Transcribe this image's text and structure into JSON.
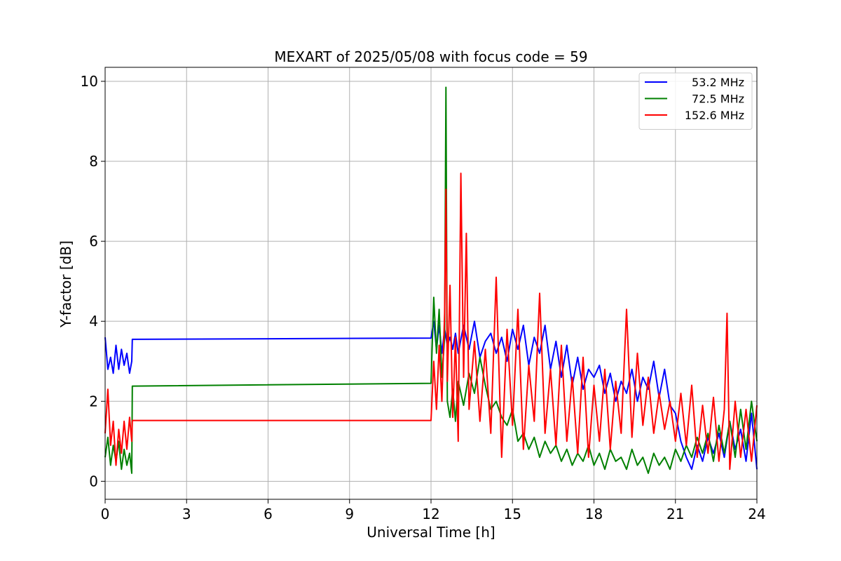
{
  "chart_data": {
    "type": "line",
    "title": "MEXART of 2025/05/08 with focus code = 59",
    "xlabel": "Universal Time [h]",
    "ylabel": "Y-factor [dB]",
    "xlim": [
      0,
      24
    ],
    "ylim": [
      -0.45,
      10.35
    ],
    "xticks": [
      0,
      3,
      6,
      9,
      12,
      15,
      18,
      21,
      24
    ],
    "yticks": [
      0,
      2,
      4,
      6,
      8,
      10
    ],
    "xtick_labels": [
      "0",
      "3",
      "6",
      "9",
      "12",
      "15",
      "18",
      "21",
      "24"
    ],
    "ytick_labels": [
      "0",
      "2",
      "4",
      "6",
      "8",
      "10"
    ],
    "grid": true,
    "legend_position": "top-right",
    "series": [
      {
        "name": "53.2 MHz",
        "color": "#0000ff",
        "x": [
          0,
          0.1,
          0.2,
          0.3,
          0.4,
          0.5,
          0.6,
          0.7,
          0.8,
          0.9,
          0.98,
          1.0,
          12.0,
          12.1,
          12.2,
          12.3,
          12.4,
          12.5,
          12.6,
          12.7,
          12.8,
          12.9,
          13.0,
          13.2,
          13.4,
          13.6,
          13.8,
          14.0,
          14.2,
          14.4,
          14.6,
          14.8,
          15.0,
          15.2,
          15.4,
          15.6,
          15.8,
          16.0,
          16.2,
          16.4,
          16.6,
          16.8,
          17.0,
          17.2,
          17.4,
          17.6,
          17.8,
          18.0,
          18.2,
          18.4,
          18.6,
          18.8,
          19.0,
          19.2,
          19.4,
          19.6,
          19.8,
          20.0,
          20.2,
          20.4,
          20.6,
          20.8,
          21.0,
          21.2,
          21.4,
          21.6,
          21.8,
          22.0,
          22.2,
          22.4,
          22.6,
          22.8,
          23.0,
          23.2,
          23.4,
          23.6,
          23.8,
          24.0
        ],
        "values": [
          3.6,
          2.8,
          3.1,
          2.7,
          3.4,
          2.8,
          3.3,
          2.9,
          3.2,
          2.7,
          3.0,
          3.55,
          3.58,
          4.0,
          3.3,
          3.9,
          3.2,
          3.8,
          3.4,
          3.6,
          3.3,
          3.7,
          3.2,
          3.9,
          3.3,
          4.0,
          3.1,
          3.5,
          3.7,
          3.2,
          3.6,
          3.0,
          3.8,
          3.3,
          3.9,
          2.9,
          3.6,
          3.2,
          3.9,
          2.8,
          3.5,
          2.6,
          3.4,
          2.4,
          3.1,
          2.3,
          2.8,
          2.6,
          2.9,
          2.2,
          2.7,
          2.0,
          2.5,
          2.2,
          2.8,
          2.0,
          2.6,
          2.3,
          3.0,
          2.1,
          2.8,
          1.9,
          1.7,
          1.0,
          0.6,
          0.3,
          0.9,
          0.5,
          1.1,
          0.7,
          1.2,
          0.6,
          1.5,
          0.8,
          1.3,
          0.5,
          1.7,
          0.3
        ]
      },
      {
        "name": "72.5 MHz",
        "color": "#008000",
        "x": [
          0,
          0.1,
          0.2,
          0.3,
          0.4,
          0.5,
          0.6,
          0.7,
          0.8,
          0.9,
          0.98,
          1.0,
          12.0,
          12.1,
          12.2,
          12.3,
          12.4,
          12.5,
          12.55,
          12.6,
          12.7,
          12.8,
          12.9,
          13.0,
          13.2,
          13.4,
          13.6,
          13.8,
          14.0,
          14.2,
          14.4,
          14.6,
          14.8,
          15.0,
          15.2,
          15.4,
          15.6,
          15.8,
          16.0,
          16.2,
          16.4,
          16.6,
          16.8,
          17.0,
          17.2,
          17.4,
          17.6,
          17.8,
          18.0,
          18.2,
          18.4,
          18.6,
          18.8,
          19.0,
          19.2,
          19.4,
          19.6,
          19.8,
          20.0,
          20.2,
          20.4,
          20.6,
          20.8,
          21.0,
          21.2,
          21.4,
          21.6,
          21.8,
          22.0,
          22.2,
          22.4,
          22.6,
          22.8,
          23.0,
          23.2,
          23.4,
          23.6,
          23.8,
          24.0
        ],
        "values": [
          0.6,
          1.1,
          0.4,
          0.9,
          0.5,
          1.0,
          0.3,
          0.8,
          0.4,
          0.7,
          0.2,
          2.38,
          2.45,
          4.6,
          3.2,
          4.3,
          2.6,
          3.6,
          9.85,
          2.0,
          1.6,
          2.3,
          1.5,
          2.5,
          1.9,
          2.7,
          2.2,
          3.1,
          2.4,
          1.8,
          2.0,
          1.6,
          1.4,
          1.8,
          1.0,
          1.2,
          0.8,
          1.1,
          0.6,
          1.0,
          0.7,
          0.9,
          0.5,
          0.8,
          0.4,
          0.7,
          0.5,
          0.9,
          0.4,
          0.7,
          0.3,
          0.8,
          0.5,
          0.6,
          0.3,
          0.8,
          0.4,
          0.6,
          0.2,
          0.7,
          0.4,
          0.6,
          0.3,
          0.8,
          0.5,
          0.9,
          0.6,
          1.1,
          0.7,
          1.2,
          0.5,
          1.4,
          0.7,
          1.5,
          0.6,
          1.8,
          0.8,
          2.0,
          1.0
        ]
      },
      {
        "name": "152.6 MHz",
        "color": "#ff0000",
        "x": [
          0,
          0.1,
          0.2,
          0.3,
          0.4,
          0.5,
          0.6,
          0.7,
          0.8,
          0.9,
          0.98,
          1.0,
          12.0,
          12.1,
          12.2,
          12.3,
          12.4,
          12.5,
          12.55,
          12.6,
          12.7,
          12.8,
          12.9,
          13.0,
          13.1,
          13.2,
          13.3,
          13.4,
          13.6,
          13.8,
          14.0,
          14.2,
          14.4,
          14.6,
          14.8,
          15.0,
          15.2,
          15.4,
          15.6,
          15.8,
          16.0,
          16.2,
          16.4,
          16.6,
          16.8,
          17.0,
          17.2,
          17.4,
          17.6,
          17.8,
          18.0,
          18.2,
          18.4,
          18.6,
          18.8,
          19.0,
          19.2,
          19.4,
          19.6,
          19.8,
          20.0,
          20.2,
          20.4,
          20.6,
          20.8,
          21.0,
          21.2,
          21.4,
          21.6,
          21.8,
          22.0,
          22.2,
          22.4,
          22.6,
          22.8,
          22.9,
          23.0,
          23.2,
          23.4,
          23.6,
          23.8,
          24.0
        ],
        "values": [
          1.2,
          2.3,
          0.9,
          1.5,
          0.4,
          1.3,
          0.7,
          1.5,
          0.8,
          1.6,
          1.0,
          1.52,
          1.52,
          3.0,
          1.8,
          3.4,
          2.0,
          4.2,
          7.3,
          2.5,
          4.9,
          1.6,
          3.6,
          1.0,
          7.7,
          2.6,
          6.2,
          1.8,
          3.5,
          1.5,
          3.3,
          1.2,
          5.1,
          0.6,
          3.8,
          1.4,
          4.3,
          0.8,
          2.9,
          1.5,
          4.7,
          1.2,
          2.8,
          0.9,
          3.4,
          1.0,
          2.6,
          0.7,
          3.1,
          0.6,
          2.4,
          1.0,
          2.8,
          0.8,
          2.5,
          1.2,
          4.3,
          1.1,
          3.2,
          1.4,
          2.6,
          1.2,
          2.2,
          1.3,
          2.0,
          1.0,
          2.2,
          0.9,
          2.4,
          0.6,
          1.9,
          0.7,
          2.1,
          0.5,
          1.8,
          4.2,
          0.3,
          2.0,
          0.6,
          1.8,
          0.5,
          1.9
        ]
      }
    ]
  }
}
